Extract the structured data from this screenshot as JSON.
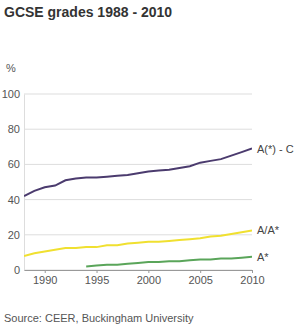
{
  "chart_data": {
    "type": "line",
    "title": "GCSE grades 1988 - 2010",
    "ylabel": "%",
    "source": "Source: CEER, Buckingham University",
    "x": [
      1988,
      1989,
      1990,
      1991,
      1992,
      1993,
      1994,
      1995,
      1996,
      1997,
      1998,
      1999,
      2000,
      2001,
      2002,
      2003,
      2004,
      2005,
      2006,
      2007,
      2008,
      2009,
      2010
    ],
    "series": [
      {
        "name": "A(*) - C",
        "color": "#4b3b6e",
        "values": [
          42,
          45,
          47,
          48,
          51,
          52,
          52.5,
          52.5,
          53,
          53.5,
          54,
          55,
          56,
          56.5,
          57,
          58,
          59,
          61,
          62,
          63,
          65,
          67,
          69
        ]
      },
      {
        "name": "A/A*",
        "color": "#f0e030",
        "values": [
          8,
          9.5,
          10.5,
          11.5,
          12.5,
          12.5,
          13,
          13,
          14,
          14,
          15,
          15.5,
          16,
          16,
          16.5,
          17,
          17.5,
          18,
          19,
          19.5,
          20.5,
          21.5,
          22.5
        ]
      },
      {
        "name": "A*",
        "color": "#5aa55a",
        "values": [
          null,
          null,
          null,
          null,
          null,
          null,
          2,
          2.5,
          3,
          3,
          3.5,
          4,
          4.5,
          4.5,
          5,
          5,
          5.5,
          6,
          6,
          6.5,
          6.5,
          7,
          7.5
        ]
      }
    ],
    "xlim": [
      1988,
      2010
    ],
    "xticks": [
      1990,
      1995,
      2000,
      2005,
      2010
    ],
    "ylim": [
      0,
      100
    ],
    "yticks": [
      0,
      20,
      40,
      60,
      80,
      100
    ],
    "grid": true
  }
}
